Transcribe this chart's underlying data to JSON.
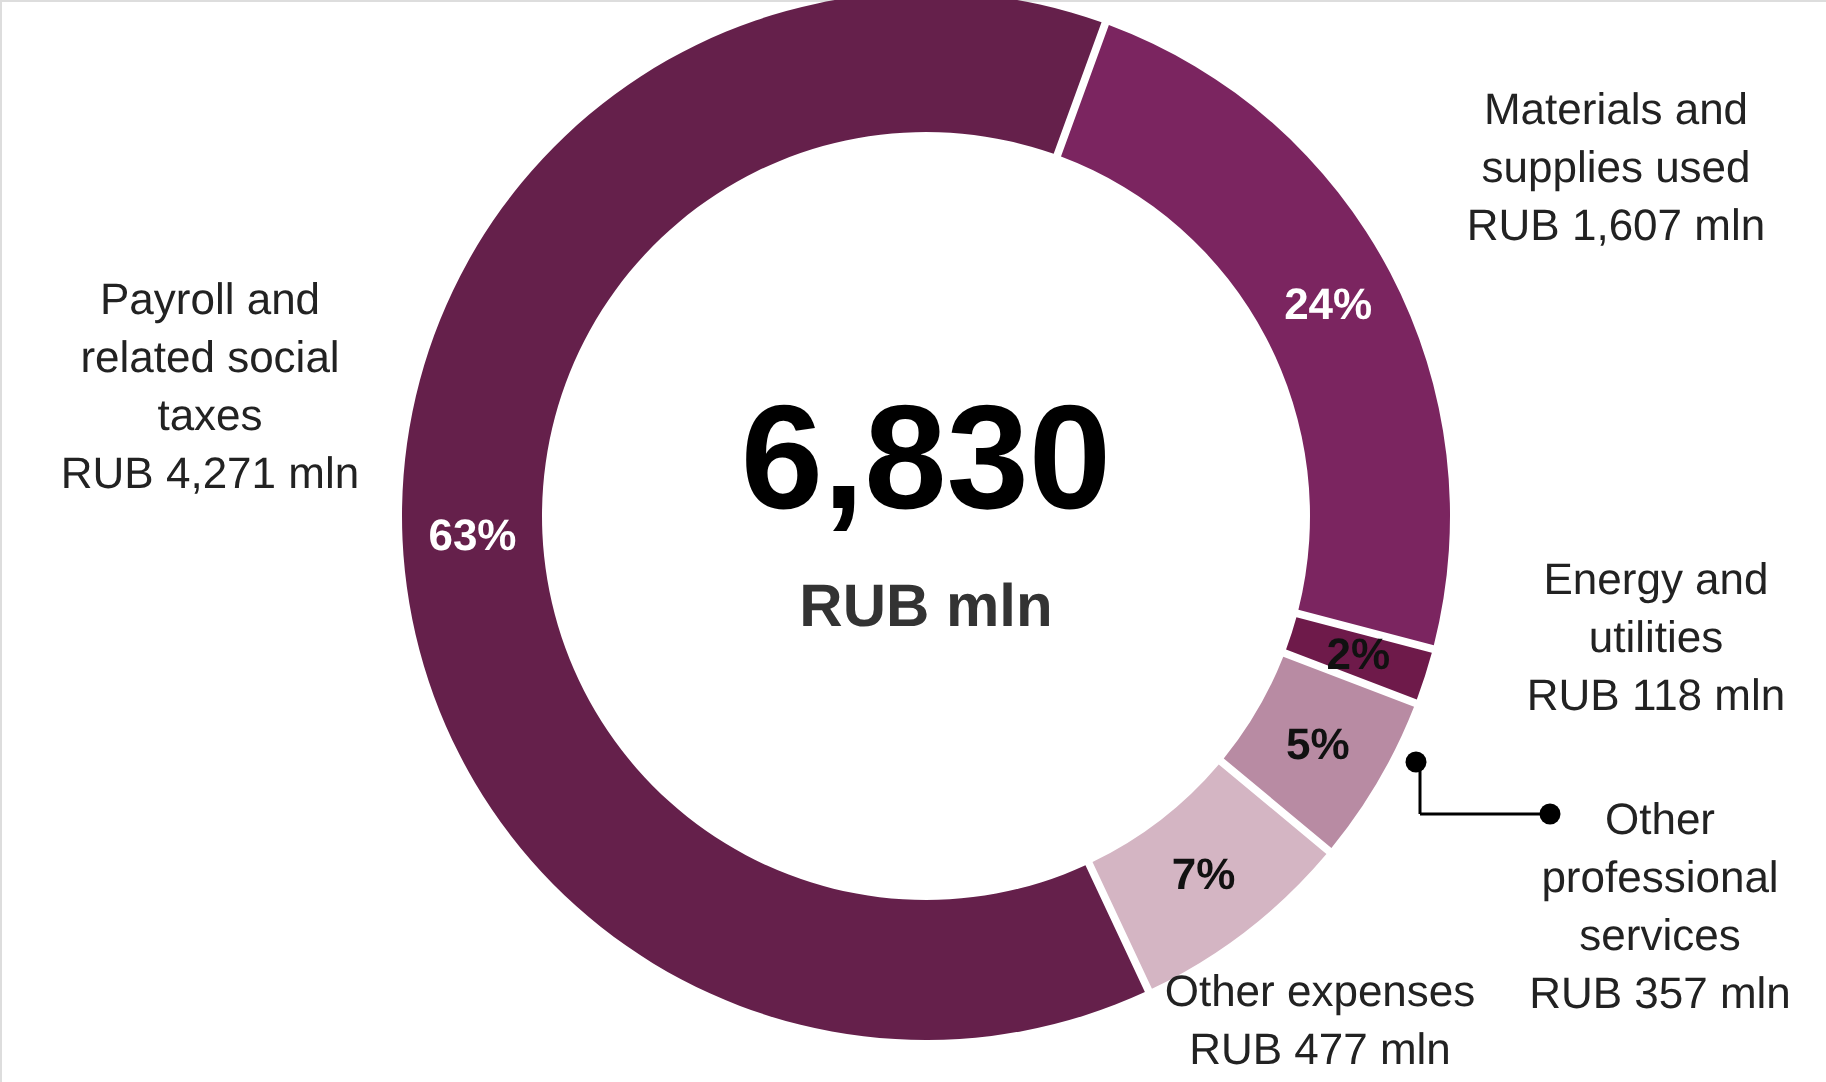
{
  "chart_data": {
    "type": "donut",
    "categories": [
      "Materials and supplies used",
      "Energy and utilities",
      "Other professional services",
      "Other expenses",
      "Payroll and related social taxes"
    ],
    "values": [
      1607,
      118,
      357,
      477,
      4271
    ],
    "colors": [
      "#7b2560",
      "#6e1a4a",
      "#b88ba3",
      "#d4b5c3",
      "#65204b"
    ],
    "value_labels": [
      "RUB 1,607 mln",
      "RUB 118 mln",
      "RUB 357 mln",
      "RUB 477 mln",
      "RUB 4,271 mln"
    ],
    "annotations": [
      "6,830",
      "RUB mln",
      "24%",
      "2%",
      "5%",
      "7%",
      "63%"
    ]
  }
}
